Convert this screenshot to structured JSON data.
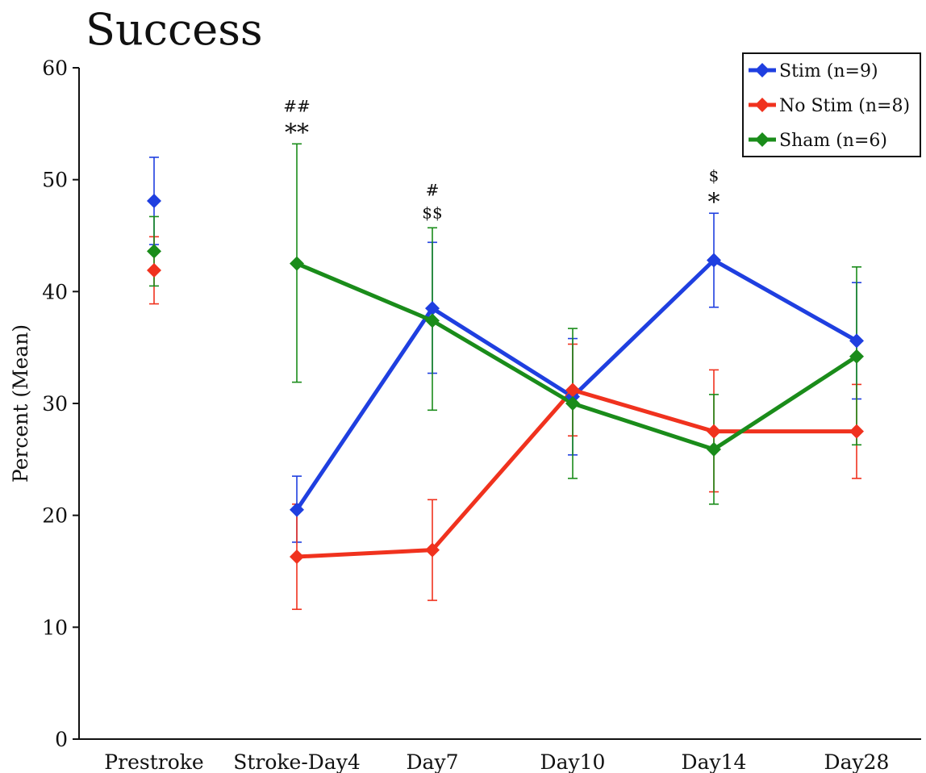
{
  "chart_data": {
    "type": "line",
    "title": "Success",
    "xlabel": "",
    "ylabel": "Percent (Mean)",
    "ylim": [
      0,
      60
    ],
    "yticks": [
      0,
      10,
      20,
      30,
      40,
      50,
      60
    ],
    "categories": [
      "Prestroke",
      "Stroke-Day4",
      "Day7",
      "Day10",
      "Day14",
      "Day28"
    ],
    "grid": false,
    "legend_position": "top-right",
    "series": [
      {
        "name": "Stim (n=9)",
        "color": "#1f3fe0",
        "values": [
          48.1,
          20.5,
          38.5,
          30.6,
          42.8,
          35.6
        ],
        "error_low": [
          44.2,
          17.6,
          32.7,
          25.4,
          38.6,
          30.4
        ],
        "error_high": [
          52.0,
          23.5,
          44.4,
          35.8,
          47.0,
          40.8
        ]
      },
      {
        "name": "No Stim (n=8)",
        "color": "#f0321e",
        "values": [
          41.9,
          16.3,
          16.9,
          31.2,
          27.5,
          27.5
        ],
        "error_low": [
          38.9,
          11.6,
          12.4,
          27.1,
          22.1,
          23.3
        ],
        "error_high": [
          44.9,
          21.0,
          21.4,
          35.3,
          33.0,
          31.7
        ]
      },
      {
        "name": "Sham (n=6)",
        "color": "#1a8c1a",
        "values": [
          43.6,
          42.5,
          37.4,
          30.0,
          25.9,
          34.2
        ],
        "error_low": [
          40.5,
          31.9,
          29.4,
          23.3,
          21.0,
          26.3
        ],
        "error_high": [
          46.7,
          53.2,
          45.7,
          36.7,
          30.8,
          42.2
        ]
      }
    ],
    "annotations": [
      {
        "category": "Stroke-Day4",
        "lines": [
          "##",
          "**"
        ]
      },
      {
        "category": "Day7",
        "lines": [
          "#",
          "$$"
        ]
      },
      {
        "category": "Day14",
        "lines": [
          "$",
          "*"
        ]
      }
    ]
  }
}
